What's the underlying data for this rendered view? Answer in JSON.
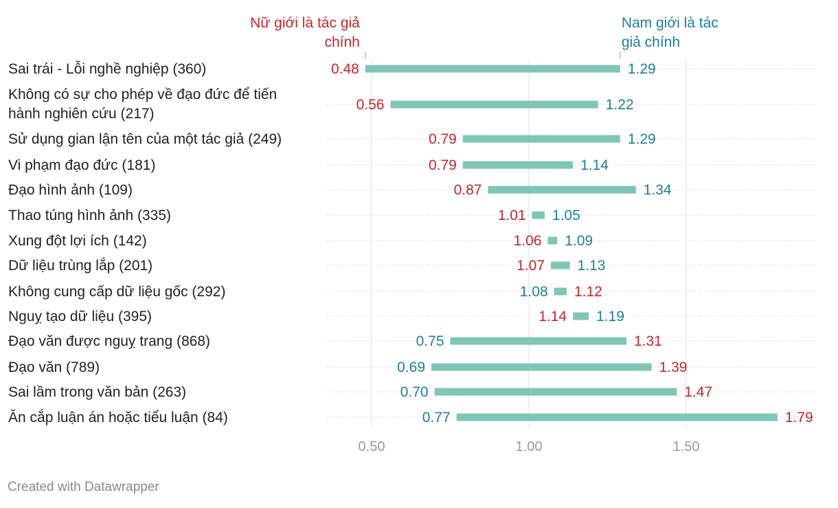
{
  "chart_data": {
    "type": "range-bar",
    "categories": [
      "Sai trái - Lỗi nghề nghiệp (360)",
      "Không có sự cho phép về đạo đức để tiến hành nghiên cứu (217)",
      "Sử dụng gian lận tên của một tác giả (249)",
      "Vi phạm đạo đức (181)",
      "Đạo hình ảnh (109)",
      "Thao túng hình ảnh (335)",
      "Xung đột lợi ích (142)",
      "Dữ liệu trùng lắp (201)",
      "Không cung cấp dữ liệu gốc (292)",
      "Nguỵ tạo dữ liệu (395)",
      "Đạo văn được nguỵ trang (868)",
      "Đạo văn (789)",
      "Sai lầm trong văn bản (263)",
      "Ăn cắp luận án hoặc tiểu luận (84)"
    ],
    "series": [
      {
        "name": "Nữ giới là tác giả chính",
        "color": "#c7252a",
        "values": [
          0.48,
          0.56,
          0.79,
          0.79,
          0.87,
          1.01,
          1.06,
          1.07,
          1.12,
          1.14,
          1.31,
          1.39,
          1.47,
          1.79
        ]
      },
      {
        "name": "Nam giới là tác giả chính",
        "color": "#1d7f9a",
        "values": [
          1.29,
          1.22,
          1.29,
          1.14,
          1.34,
          1.05,
          1.09,
          1.13,
          1.08,
          1.19,
          0.75,
          0.69,
          0.7,
          0.77
        ]
      }
    ],
    "legend_labels": {
      "female": [
        "Nữ giới là tác giả",
        "chính"
      ],
      "male": [
        "Nam giới là tác",
        "giả chính"
      ]
    },
    "x_ticks": [
      0.5,
      1.0,
      1.5
    ],
    "x_tick_labels": [
      "0.50",
      "1.00",
      "1.50"
    ],
    "xlim": [
      0.4,
      1.85
    ],
    "bar_color": "#7fc6b7",
    "grid": true
  },
  "footer": "Created with Datawrapper"
}
